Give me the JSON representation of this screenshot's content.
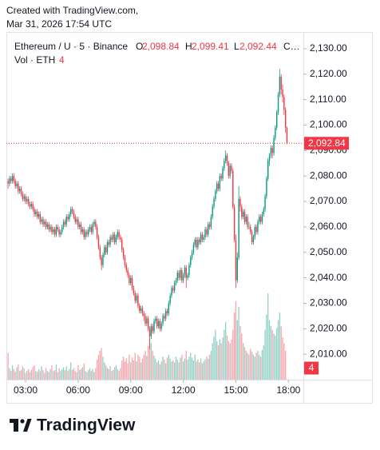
{
  "header": {
    "created": "Created with TradingView.com,",
    "timestamp": "Mar 31, 2026 17:54 UTC"
  },
  "footer": {
    "brand": "TradingView"
  },
  "chart_data": {
    "type": "candlestick",
    "symbol": "Ethereum / U · 5 · Binance",
    "legend": [
      {
        "key": "O",
        "value": {
          "value": 2098.84,
          "label": "2,098.84"
        }
      },
      {
        "key": "H",
        "value": {
          "value": 2099.41,
          "label": "2,099.41"
        }
      },
      {
        "key": "L",
        "value": {
          "value": 2092.44,
          "label": "2,092.44"
        }
      }
    ],
    "close_key": "C…",
    "volume_name": "Vol · ETH",
    "last_price": {
      "value": 2092.84,
      "label": "2,092.84"
    },
    "up_color": "#089981",
    "down_color": "#f23645",
    "grid": false,
    "ylim": [
      2000,
      2135
    ],
    "yticks": [
      {
        "value": 2010,
        "label": "2,010.00"
      },
      {
        "value": 2020,
        "label": "2,020.00"
      },
      {
        "value": 2030,
        "label": "2,030.00"
      },
      {
        "value": 2040,
        "label": "2,040.00"
      },
      {
        "value": 2050,
        "label": "2,050.00"
      },
      {
        "value": 2060,
        "label": "2,060.00"
      },
      {
        "value": 2070,
        "label": "2,070.00"
      },
      {
        "value": 2080,
        "label": "2,080.00"
      },
      {
        "value": 2090,
        "label": "2,090.00"
      },
      {
        "value": 2100,
        "label": "2,100.00"
      },
      {
        "value": 2110,
        "label": "2,110.00"
      },
      {
        "value": 2120,
        "label": "2,120.00"
      },
      {
        "value": 2130,
        "label": "2,130.00"
      }
    ],
    "xlim": [
      -5.5,
      202.2
    ],
    "xticks": [
      {
        "value": 12,
        "label": "03:00"
      },
      {
        "value": 48,
        "label": "06:00"
      },
      {
        "value": 84,
        "label": "09:00"
      },
      {
        "value": 120,
        "label": "12:00"
      },
      {
        "value": 156,
        "label": "15:00"
      },
      {
        "value": 192,
        "label": "18:00"
      }
    ],
    "vlim": [
      0,
      1000
    ],
    "candles": [
      [
        2078,
        2079,
        2075,
        2077
      ],
      [
        2077,
        2080,
        2076,
        2079
      ],
      [
        2079,
        2080,
        2077,
        2078
      ],
      [
        2078,
        2081,
        2077,
        2080
      ],
      [
        2080,
        2081,
        2077,
        2078
      ],
      [
        2078,
        2079,
        2075,
        2076
      ],
      [
        2076,
        2078,
        2075,
        2077
      ],
      [
        2077,
        2078,
        2073,
        2074
      ],
      [
        2074,
        2076,
        2073,
        2075
      ],
      [
        2075,
        2076,
        2072,
        2073
      ],
      [
        2073,
        2074,
        2070,
        2071
      ],
      [
        2071,
        2073,
        2070,
        2072
      ],
      [
        2072,
        2073,
        2069,
        2070
      ],
      [
        2070,
        2072,
        2069,
        2071
      ],
      [
        2071,
        2072,
        2068,
        2069
      ],
      [
        2069,
        2070,
        2067,
        2068
      ],
      [
        2068,
        2070,
        2067,
        2069
      ],
      [
        2069,
        2070,
        2066,
        2067
      ],
      [
        2067,
        2068,
        2064,
        2065
      ],
      [
        2065,
        2067,
        2064,
        2066
      ],
      [
        2066,
        2067,
        2063,
        2064
      ],
      [
        2064,
        2066,
        2063,
        2065
      ],
      [
        2065,
        2066,
        2061,
        2062
      ],
      [
        2062,
        2064,
        2061,
        2063
      ],
      [
        2063,
        2064,
        2060,
        2061
      ],
      [
        2061,
        2063,
        2060,
        2062
      ],
      [
        2062,
        2063,
        2059,
        2060
      ],
      [
        2060,
        2062,
        2059,
        2061
      ],
      [
        2061,
        2062,
        2058,
        2059
      ],
      [
        2059,
        2061,
        2058,
        2060
      ],
      [
        2060,
        2061,
        2057,
        2058
      ],
      [
        2058,
        2060,
        2057,
        2059
      ],
      [
        2059,
        2060,
        2056,
        2057
      ],
      [
        2057,
        2061,
        2056,
        2060
      ],
      [
        2060,
        2061,
        2058,
        2059
      ],
      [
        2059,
        2060,
        2056,
        2057
      ],
      [
        2057,
        2059,
        2056,
        2058
      ],
      [
        2058,
        2061,
        2057,
        2060
      ],
      [
        2060,
        2063,
        2059,
        2062
      ],
      [
        2062,
        2063,
        2060,
        2061
      ],
      [
        2061,
        2065,
        2060,
        2064
      ],
      [
        2064,
        2065,
        2062,
        2063
      ],
      [
        2063,
        2066,
        2062,
        2065
      ],
      [
        2065,
        2068,
        2064,
        2067
      ],
      [
        2067,
        2068,
        2065,
        2066
      ],
      [
        2066,
        2067,
        2063,
        2064
      ],
      [
        2064,
        2065,
        2061,
        2062
      ],
      [
        2062,
        2064,
        2061,
        2063
      ],
      [
        2063,
        2064,
        2059,
        2060
      ],
      [
        2060,
        2062,
        2059,
        2061
      ],
      [
        2061,
        2062,
        2057,
        2058
      ],
      [
        2058,
        2060,
        2057,
        2059
      ],
      [
        2059,
        2060,
        2055,
        2056
      ],
      [
        2056,
        2059,
        2055,
        2058
      ],
      [
        2058,
        2059,
        2056,
        2057
      ],
      [
        2057,
        2060,
        2056,
        2059
      ],
      [
        2059,
        2061,
        2058,
        2060
      ],
      [
        2060,
        2061,
        2057,
        2058
      ],
      [
        2058,
        2062,
        2057,
        2061
      ],
      [
        2061,
        2063,
        2060,
        2062
      ],
      [
        2062,
        2063,
        2059,
        2060
      ],
      [
        2060,
        2061,
        2055,
        2056
      ],
      [
        2056,
        2057,
        2051,
        2052
      ],
      [
        2052,
        2053,
        2047,
        2048
      ],
      [
        2048,
        2049,
        2043,
        2045
      ],
      [
        2045,
        2050,
        2044,
        2049
      ],
      [
        2049,
        2053,
        2048,
        2052
      ],
      [
        2052,
        2053,
        2049,
        2050
      ],
      [
        2050,
        2055,
        2049,
        2054
      ],
      [
        2054,
        2055,
        2052,
        2053
      ],
      [
        2053,
        2057,
        2052,
        2056
      ],
      [
        2056,
        2057,
        2054,
        2055
      ],
      [
        2055,
        2058,
        2054,
        2057
      ],
      [
        2057,
        2058,
        2053,
        2054
      ],
      [
        2054,
        2057,
        2053,
        2056
      ],
      [
        2056,
        2059,
        2055,
        2058
      ],
      [
        2058,
        2059,
        2055,
        2056
      ],
      [
        2056,
        2057,
        2054,
        2055
      ],
      [
        2055,
        2056,
        2050,
        2051
      ],
      [
        2051,
        2052,
        2047,
        2048
      ],
      [
        2048,
        2049,
        2044,
        2045
      ],
      [
        2045,
        2046,
        2042,
        2043
      ],
      [
        2043,
        2044,
        2040,
        2041
      ],
      [
        2041,
        2042,
        2037,
        2038
      ],
      [
        2038,
        2041,
        2037,
        2040
      ],
      [
        2040,
        2041,
        2035,
        2036
      ],
      [
        2036,
        2037,
        2033,
        2034
      ],
      [
        2034,
        2035,
        2030,
        2031
      ],
      [
        2031,
        2034,
        2030,
        2033
      ],
      [
        2033,
        2034,
        2028,
        2029
      ],
      [
        2029,
        2030,
        2026,
        2027
      ],
      [
        2027,
        2029,
        2026,
        2028
      ],
      [
        2028,
        2029,
        2025,
        2026
      ],
      [
        2026,
        2027,
        2023,
        2025
      ],
      [
        2025,
        2026,
        2021,
        2022
      ],
      [
        2022,
        2025,
        2021,
        2024
      ],
      [
        2024,
        2025,
        2019,
        2020
      ],
      [
        2020,
        2021,
        2012,
        2017
      ],
      [
        2017,
        2022,
        2016,
        2021
      ],
      [
        2021,
        2022,
        2018,
        2019
      ],
      [
        2019,
        2024,
        2018,
        2023
      ],
      [
        2023,
        2025,
        2022,
        2024
      ],
      [
        2024,
        2025,
        2020,
        2021
      ],
      [
        2021,
        2024,
        2020,
        2023
      ],
      [
        2023,
        2024,
        2019,
        2020
      ],
      [
        2020,
        2023,
        2019,
        2022
      ],
      [
        2022,
        2026,
        2021,
        2025
      ],
      [
        2025,
        2026,
        2023,
        2024
      ],
      [
        2024,
        2028,
        2023,
        2027
      ],
      [
        2027,
        2028,
        2025,
        2026
      ],
      [
        2026,
        2031,
        2025,
        2030
      ],
      [
        2030,
        2034,
        2029,
        2033
      ],
      [
        2033,
        2037,
        2032,
        2036
      ],
      [
        2036,
        2037,
        2034,
        2035
      ],
      [
        2035,
        2039,
        2034,
        2038
      ],
      [
        2038,
        2040,
        2037,
        2039
      ],
      [
        2039,
        2043,
        2038,
        2042
      ],
      [
        2042,
        2043,
        2039,
        2040
      ],
      [
        2040,
        2044,
        2039,
        2043
      ],
      [
        2043,
        2044,
        2038,
        2039
      ],
      [
        2039,
        2042,
        2038,
        2041
      ],
      [
        2041,
        2045,
        2040,
        2044
      ],
      [
        2044,
        2045,
        2036,
        2040
      ],
      [
        2040,
        2042,
        2039,
        2041
      ],
      [
        2041,
        2046,
        2040,
        2045
      ],
      [
        2045,
        2049,
        2044,
        2048
      ],
      [
        2048,
        2051,
        2047,
        2050
      ],
      [
        2050,
        2054,
        2049,
        2053
      ],
      [
        2053,
        2056,
        2052,
        2055
      ],
      [
        2055,
        2056,
        2051,
        2052
      ],
      [
        2052,
        2056,
        2051,
        2055
      ],
      [
        2055,
        2056,
        2053,
        2054
      ],
      [
        2054,
        2058,
        2053,
        2057
      ],
      [
        2057,
        2058,
        2054,
        2055
      ],
      [
        2055,
        2057,
        2054,
        2056
      ],
      [
        2056,
        2060,
        2055,
        2059
      ],
      [
        2059,
        2060,
        2056,
        2057
      ],
      [
        2057,
        2062,
        2056,
        2061
      ],
      [
        2061,
        2062,
        2059,
        2060
      ],
      [
        2060,
        2065,
        2059,
        2064
      ],
      [
        2064,
        2069,
        2063,
        2068
      ],
      [
        2068,
        2072,
        2067,
        2071
      ],
      [
        2071,
        2075,
        2070,
        2074
      ],
      [
        2074,
        2078,
        2073,
        2077
      ],
      [
        2077,
        2078,
        2074,
        2075
      ],
      [
        2075,
        2081,
        2074,
        2080
      ],
      [
        2080,
        2081,
        2078,
        2079
      ],
      [
        2079,
        2084,
        2078,
        2083
      ],
      [
        2083,
        2087,
        2082,
        2086
      ],
      [
        2086,
        2090,
        2085,
        2088
      ],
      [
        2088,
        2089,
        2084,
        2085
      ],
      [
        2085,
        2086,
        2079,
        2080
      ],
      [
        2080,
        2085,
        2079,
        2084
      ],
      [
        2084,
        2085,
        2081,
        2082
      ],
      [
        2082,
        2083,
        2067,
        2068
      ],
      [
        2068,
        2069,
        2054,
        2055
      ],
      [
        2055,
        2057,
        2036,
        2039
      ],
      [
        2039,
        2050,
        2038,
        2048
      ],
      [
        2048,
        2076,
        2047,
        2071
      ],
      [
        2071,
        2072,
        2066,
        2068
      ],
      [
        2068,
        2069,
        2063,
        2064
      ],
      [
        2064,
        2067,
        2063,
        2066
      ],
      [
        2066,
        2067,
        2061,
        2062
      ],
      [
        2062,
        2065,
        2061,
        2064
      ],
      [
        2064,
        2065,
        2059,
        2060
      ],
      [
        2060,
        2062,
        2059,
        2060
      ],
      [
        2060,
        2061,
        2057,
        2058
      ],
      [
        2058,
        2059,
        2053,
        2054
      ],
      [
        2054,
        2057,
        2053,
        2056
      ],
      [
        2056,
        2061,
        2055,
        2060
      ],
      [
        2060,
        2061,
        2057,
        2058
      ],
      [
        2058,
        2063,
        2057,
        2062
      ],
      [
        2062,
        2065,
        2061,
        2064
      ],
      [
        2064,
        2065,
        2061,
        2062
      ],
      [
        2062,
        2066,
        2061,
        2065
      ],
      [
        2065,
        2068,
        2064,
        2067
      ],
      [
        2067,
        2073,
        2066,
        2072
      ],
      [
        2072,
        2080,
        2071,
        2079
      ],
      [
        2079,
        2087,
        2078,
        2086
      ],
      [
        2086,
        2089,
        2084,
        2088
      ],
      [
        2088,
        2092,
        2087,
        2091
      ],
      [
        2091,
        2092,
        2087,
        2089
      ],
      [
        2089,
        2096,
        2088,
        2095
      ],
      [
        2095,
        2100,
        2094,
        2099
      ],
      [
        2099,
        2106,
        2098,
        2105
      ],
      [
        2105,
        2113,
        2104,
        2112
      ],
      [
        2112,
        2122,
        2111,
        2119
      ],
      [
        2119,
        2120,
        2112,
        2114
      ],
      [
        2114,
        2116,
        2109,
        2111
      ],
      [
        2111,
        2112,
        2104,
        2106
      ],
      [
        2106,
        2107,
        2097,
        2098.84
      ],
      [
        2098.84,
        2099.41,
        2092.44,
        2092.84
      ]
    ],
    "volume": [
      280,
      120,
      90,
      150,
      110,
      80,
      130,
      160,
      90,
      100,
      140,
      120,
      70,
      90,
      110,
      80,
      100,
      130,
      150,
      90,
      80,
      110,
      90,
      140,
      100,
      70,
      120,
      90,
      80,
      110,
      150,
      90,
      100,
      160,
      80,
      120,
      90,
      110,
      130,
      100,
      140,
      90,
      110,
      180,
      100,
      120,
      90,
      80,
      150,
      100,
      110,
      130,
      170,
      90,
      80,
      100,
      120,
      90,
      110,
      80,
      120,
      210,
      260,
      300,
      330,
      240,
      180,
      150,
      120,
      110,
      140,
      90,
      100,
      130,
      150,
      110,
      90,
      120,
      200,
      240,
      190,
      220,
      170,
      260,
      180,
      230,
      200,
      280,
      190,
      260,
      240,
      180,
      220,
      260,
      300,
      250,
      350,
      420,
      380,
      300,
      250,
      220,
      180,
      200,
      160,
      190,
      240,
      210,
      170,
      230,
      260,
      220,
      190,
      200,
      180,
      240,
      210,
      180,
      230,
      260,
      190,
      220,
      300,
      210,
      240,
      280,
      230,
      200,
      260,
      190,
      210,
      180,
      220,
      170,
      190,
      210,
      240,
      220,
      260,
      300,
      380,
      450,
      520,
      400,
      360,
      420,
      380,
      440,
      520,
      600,
      460,
      400,
      380,
      420,
      520,
      700,
      820,
      620,
      760,
      560,
      480,
      380,
      340,
      300,
      280,
      260,
      320,
      290,
      260,
      240,
      280,
      300,
      260,
      240,
      310,
      360,
      520,
      680,
      900,
      620,
      560,
      520,
      480,
      460,
      540,
      620,
      700,
      560,
      440,
      380,
      300,
      4
    ]
  }
}
